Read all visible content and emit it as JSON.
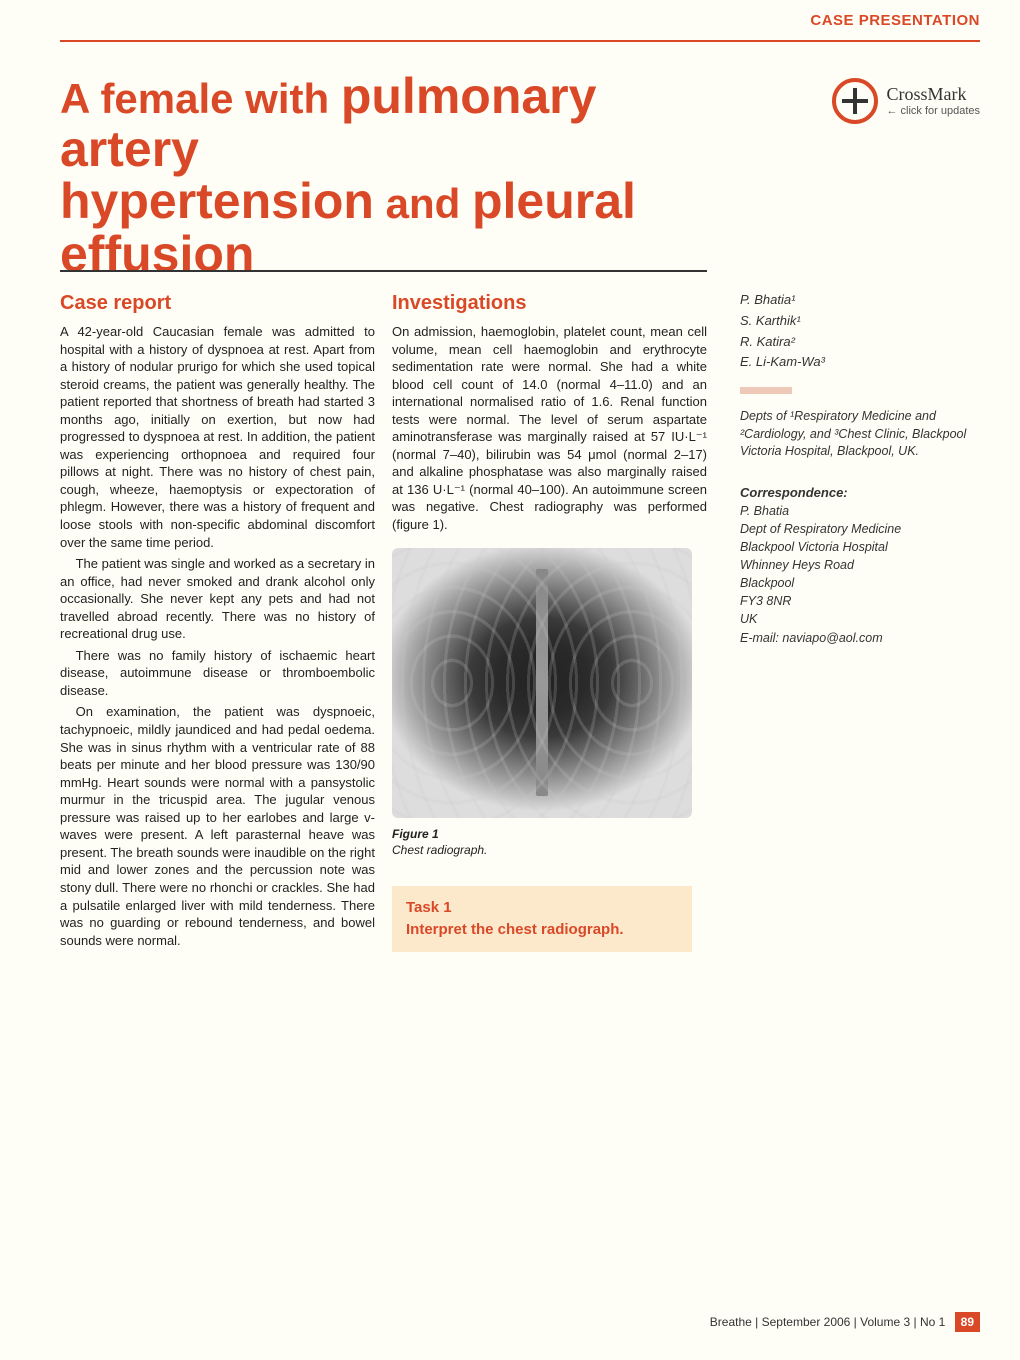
{
  "header": {
    "section_label": "CASE PRESENTATION",
    "section_color": "#d94928"
  },
  "crossmark": {
    "main": "CrossMark",
    "sub": "← click for updates"
  },
  "title": {
    "pre1": "A female with ",
    "big1": "pulmonary artery",
    "big2": "hypertension",
    "mid": " and ",
    "big3": "pleural",
    "big4": "effusion"
  },
  "col1": {
    "heading": "Case report",
    "p1": "A 42-year-old Caucasian female was admitted to hospital with a history of dyspnoea at rest. Apart from a history of nodular prurigo for which she used topical steroid creams, the patient was generally healthy. The patient reported that shortness of breath had started 3 months ago, initially on exertion, but now had progressed to dyspnoea at rest. In addition, the patient was experiencing orthopnoea and required four pillows at night. There was no history of chest pain, cough, wheeze, haemoptysis or expectoration of phlegm. However, there was a history of frequent and loose stools with non-specific abdominal discomfort over the same time period.",
    "p2": "The patient was single and worked as a secretary in an office, had never smoked and drank alcohol only occasionally. She never kept any pets and had not travelled abroad recently. There was no history of recreational drug use.",
    "p3": "There was no family history of ischaemic heart disease, autoimmune disease or thromboembolic disease.",
    "p4": "On examination, the patient was dyspnoeic, tachypnoeic, mildly jaundiced and had pedal oedema. She was in sinus rhythm with a ventricular rate of 88 beats per minute and her blood pressure was 130/90 mmHg. Heart sounds were normal with a pansystolic murmur in the tricuspid area. The jugular venous pressure was raised up to her earlobes and large v-waves were present. A left parasternal heave was present. The breath sounds were inaudible on the right mid and lower zones and the percussion note was stony dull. There were no rhonchi or crackles. She had a pulsatile enlarged liver with mild tenderness. There was no guarding or rebound tenderness, and bowel sounds were normal."
  },
  "col2": {
    "heading": "Investigations",
    "p1": "On admission, haemoglobin, platelet count, mean cell volume, mean cell haemoglobin and erythrocyte sedimentation rate were normal. She had a white blood cell count of 14.0 (normal 4–11.0) and an international normalised ratio of 1.6. Renal function tests were normal. The level of serum aspartate aminotransferase was marginally raised at 57 IU·L⁻¹ (normal 7–40), bilirubin was 54 μmol (normal 2–17) and alkaline phosphatase was also marginally raised at 136 U·L⁻¹ (normal 40–100). An autoimmune screen was negative. Chest radiography was performed (figure 1).",
    "fig_num": "Figure 1",
    "fig_text": "Chest radiograph.",
    "task_num": "Task 1",
    "task_text": "Interpret the chest radiograph."
  },
  "sidebar": {
    "authors": [
      "P. Bhatia¹",
      "S. Karthik¹",
      "R. Katira²",
      "E. Li-Kam-Wa³"
    ],
    "affil": "Depts of ¹Respiratory Medicine and ²Cardiology, and ³Chest Clinic, Blackpool Victoria Hospital, Blackpool, UK.",
    "corr_head": "Correspondence:",
    "corr": "P. Bhatia\nDept of Respiratory Medicine\nBlackpool Victoria Hospital\nWhinney Heys Road\nBlackpool\nFY3 8NR\nUK\nE-mail: naviapo@aol.com"
  },
  "footer": {
    "text": "Breathe | September 2006 | Volume 3 | No 1",
    "page": "89"
  },
  "colors": {
    "accent": "#d94928",
    "task_bg": "#fce9cc",
    "page_bg": "#fffef6",
    "accent_bar": "#eec9b8"
  }
}
